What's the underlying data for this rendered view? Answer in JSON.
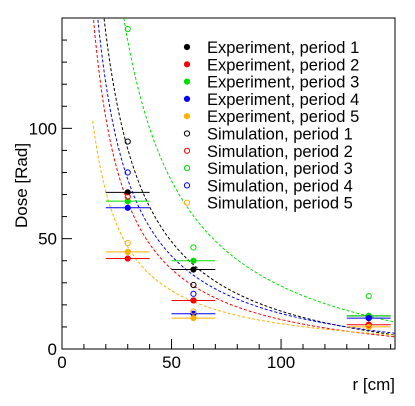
{
  "chart_data": {
    "type": "scatter",
    "xlabel": "r [cm]",
    "ylabel": "Dose [Rad]",
    "xlim": [
      0,
      152
    ],
    "ylim": [
      0,
      150
    ],
    "x_ticks": [
      0,
      50,
      100
    ],
    "y_ticks": [
      0,
      50,
      100
    ],
    "grid": false,
    "legend_position": "top-right",
    "series": [
      {
        "name": "Experiment, period 1",
        "color": "#000000",
        "marker": "filled-circle",
        "points": [
          {
            "x": 30,
            "y": 71,
            "xerr": 10
          },
          {
            "x": 60,
            "y": 36,
            "xerr": 10
          },
          {
            "x": 140,
            "y": 15,
            "xerr": 10
          }
        ]
      },
      {
        "name": "Experiment, period 2",
        "color": "#ff0000",
        "marker": "filled-circle",
        "points": [
          {
            "x": 30,
            "y": 41,
            "xerr": 10
          },
          {
            "x": 60,
            "y": 22,
            "xerr": 10
          },
          {
            "x": 140,
            "y": 11,
            "xerr": 10
          }
        ]
      },
      {
        "name": "Experiment, period 3",
        "color": "#00e000",
        "marker": "filled-circle",
        "points": [
          {
            "x": 30,
            "y": 67,
            "xerr": 10
          },
          {
            "x": 60,
            "y": 40,
            "xerr": 10
          },
          {
            "x": 140,
            "y": 15,
            "xerr": 10
          }
        ]
      },
      {
        "name": "Experiment, period 4",
        "color": "#0000ff",
        "marker": "filled-circle",
        "points": [
          {
            "x": 30,
            "y": 64,
            "xerr": 10
          },
          {
            "x": 60,
            "y": 16,
            "xerr": 10
          },
          {
            "x": 140,
            "y": 14,
            "xerr": 10
          }
        ]
      },
      {
        "name": "Experiment, period 5",
        "color": "#ffb000",
        "marker": "filled-circle",
        "points": [
          {
            "x": 30,
            "y": 44,
            "xerr": 10
          },
          {
            "x": 60,
            "y": 14,
            "xerr": 10
          },
          {
            "x": 140,
            "y": 10,
            "xerr": 10
          }
        ]
      },
      {
        "name": "Simulation, period 1",
        "color": "#000000",
        "marker": "open-circle",
        "points": [
          {
            "x": 30,
            "y": 94
          },
          {
            "x": 60,
            "y": 29
          },
          {
            "x": 140,
            "y": 14
          }
        ]
      },
      {
        "name": "Simulation, period 2",
        "color": "#ff0000",
        "marker": "open-circle",
        "points": [
          {
            "x": 30,
            "y": 69
          },
          {
            "x": 60,
            "y": 22
          },
          {
            "x": 140,
            "y": 11
          }
        ]
      },
      {
        "name": "Simulation, period 3",
        "color": "#00e000",
        "marker": "open-circle",
        "points": [
          {
            "x": 30,
            "y": 145
          },
          {
            "x": 60,
            "y": 46
          },
          {
            "x": 140,
            "y": 24
          }
        ]
      },
      {
        "name": "Simulation, period 4",
        "color": "#0000ff",
        "marker": "open-circle",
        "points": [
          {
            "x": 30,
            "y": 80
          },
          {
            "x": 60,
            "y": 25
          },
          {
            "x": 140,
            "y": 14
          }
        ]
      },
      {
        "name": "Simulation, period 5",
        "color": "#ffb000",
        "marker": "open-circle",
        "points": [
          {
            "x": 30,
            "y": 48
          },
          {
            "x": 60,
            "y": 17
          },
          {
            "x": 140,
            "y": 10
          }
        ]
      }
    ],
    "fit_curves": [
      {
        "color": "#000000",
        "style": "dashed",
        "through": [
          {
            "x": 30,
            "y": 94
          },
          {
            "x": 60,
            "y": 29
          },
          {
            "x": 140,
            "y": 14
          }
        ]
      },
      {
        "color": "#ff0000",
        "style": "dashed",
        "through": [
          {
            "x": 30,
            "y": 69
          },
          {
            "x": 60,
            "y": 22
          },
          {
            "x": 140,
            "y": 11
          }
        ]
      },
      {
        "color": "#00e000",
        "style": "dashed",
        "through": [
          {
            "x": 30,
            "y": 145
          },
          {
            "x": 60,
            "y": 46
          },
          {
            "x": 140,
            "y": 24
          }
        ]
      },
      {
        "color": "#0000ff",
        "style": "dashed",
        "through": [
          {
            "x": 30,
            "y": 80
          },
          {
            "x": 60,
            "y": 25
          },
          {
            "x": 140,
            "y": 14
          }
        ]
      },
      {
        "color": "#ffb000",
        "style": "dashed",
        "through": [
          {
            "x": 30,
            "y": 48
          },
          {
            "x": 60,
            "y": 17
          },
          {
            "x": 140,
            "y": 10
          }
        ]
      }
    ]
  }
}
